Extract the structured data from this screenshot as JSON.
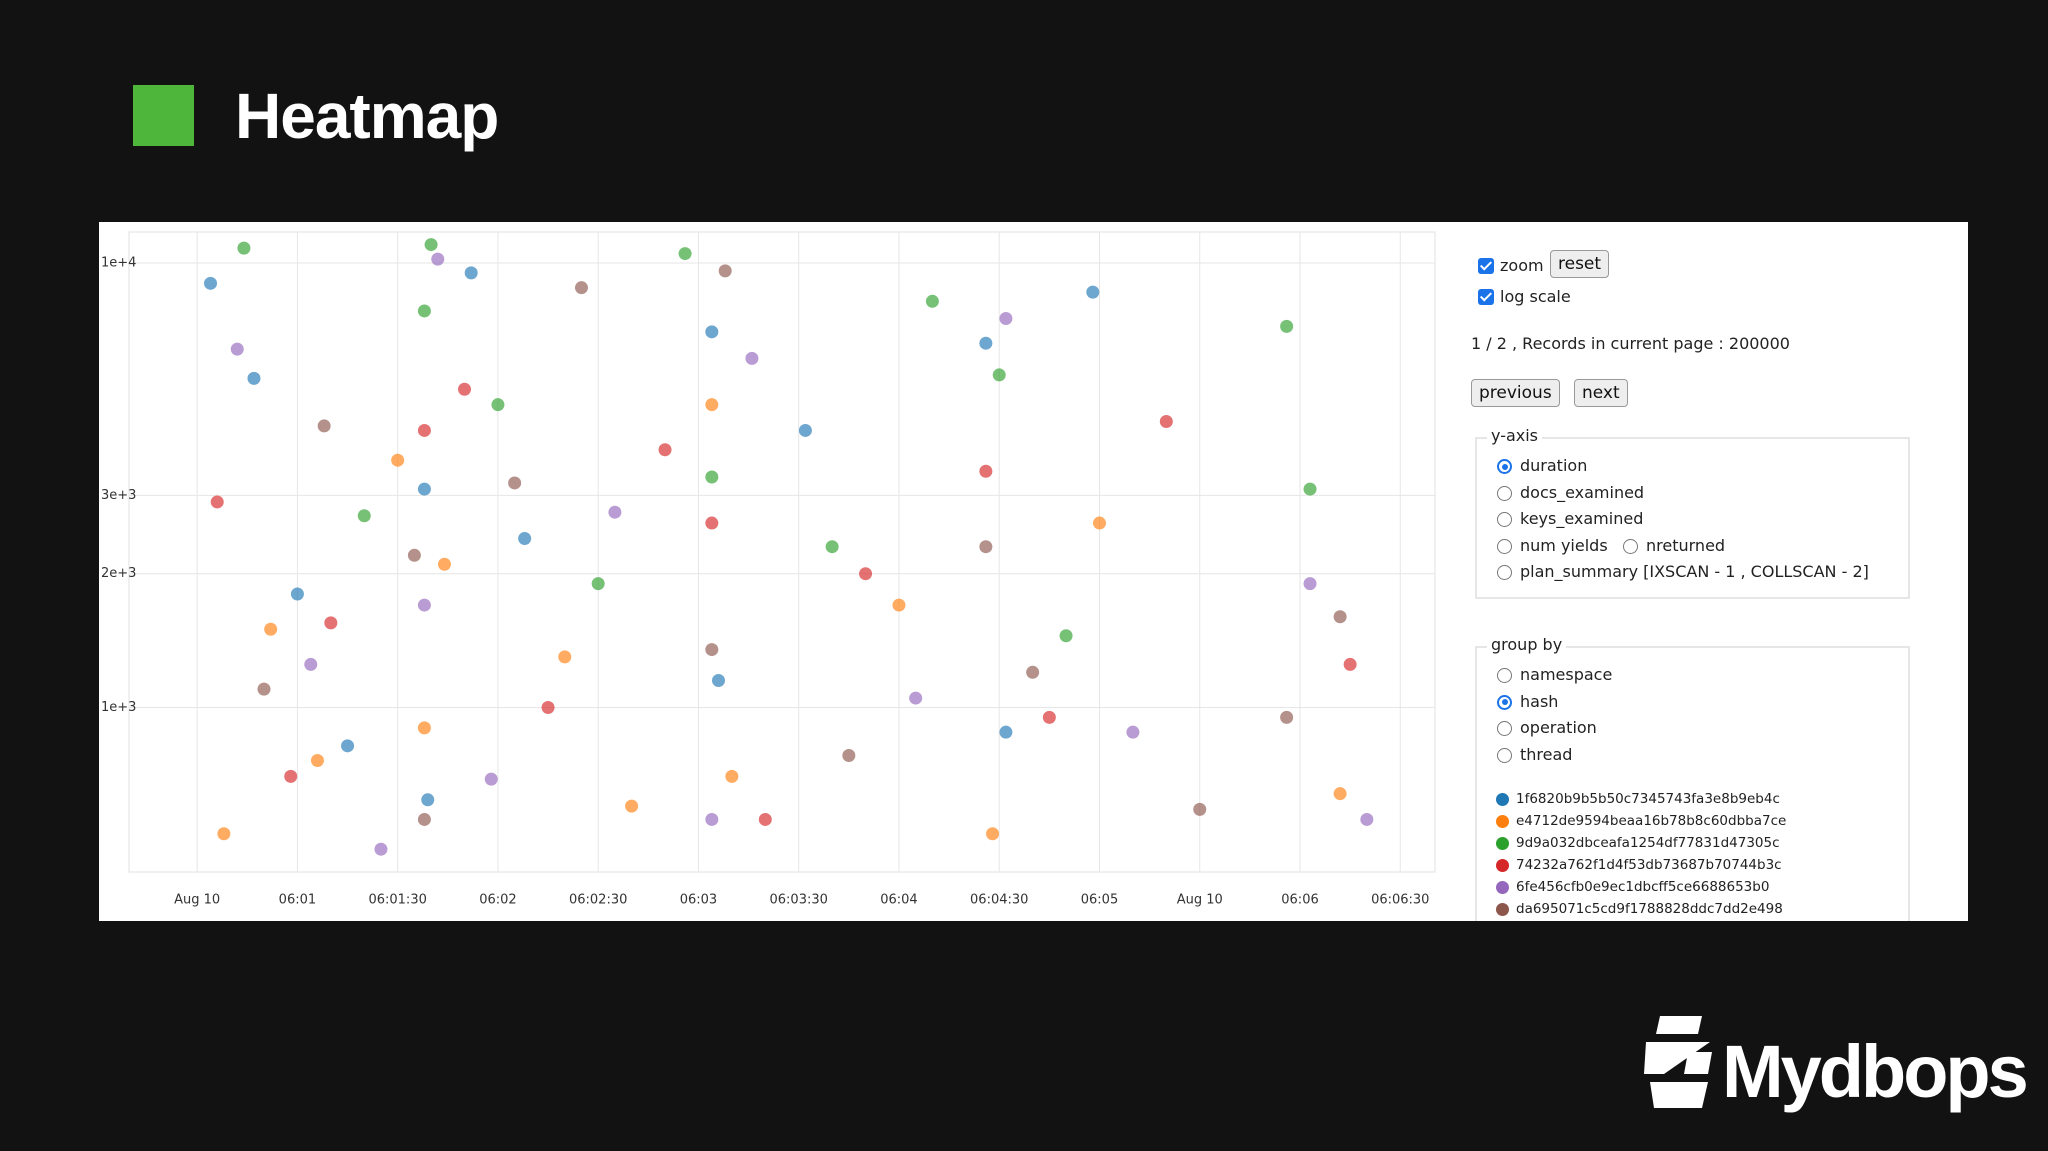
{
  "slide": {
    "title": "Heatmap",
    "brand": "Mydbops"
  },
  "chart_data": {
    "type": "scatter",
    "log_scale": true,
    "grid": true,
    "xlim": [
      12,
      398
    ],
    "ylim": [
      440,
      11500
    ],
    "xticks": [
      {
        "value": 30,
        "label": "Aug 10"
      },
      {
        "value": 60,
        "label": "06:01"
      },
      {
        "value": 90,
        "label": "06:01:30"
      },
      {
        "value": 120,
        "label": "06:02"
      },
      {
        "value": 150,
        "label": "06:02:30"
      },
      {
        "value": 180,
        "label": "06:03"
      },
      {
        "value": 210,
        "label": "06:03:30"
      },
      {
        "value": 240,
        "label": "06:04"
      },
      {
        "value": 270,
        "label": "06:04:30"
      },
      {
        "value": 300,
        "label": "06:05"
      },
      {
        "value": 330,
        "label": "Aug 10"
      },
      {
        "value": 360,
        "label": "06:06"
      },
      {
        "value": 390,
        "label": "06:06:30"
      }
    ],
    "yticks": [
      {
        "value": 10000,
        "label": "1e+4"
      },
      {
        "value": 3000,
        "label": "3e+3"
      },
      {
        "value": 2000,
        "label": "2e+3"
      },
      {
        "value": 1000,
        "label": "1e+3"
      }
    ],
    "series": [
      {
        "name": "1f6820b9b5b50c7345743fa3e8b9eb4c",
        "color": "#1f77b4",
        "x": [
          34,
          47,
          60,
          75,
          98,
          99,
          112,
          128,
          184,
          186,
          212,
          266,
          272,
          298
        ],
        "values": [
          9000,
          5500,
          1800,
          820,
          3100,
          620,
          9500,
          2400,
          7000,
          1150,
          4200,
          6600,
          880,
          8600
        ]
      },
      {
        "name": "e4712de9594beaa16b78b8c60dbba7ce",
        "color": "#ff7f0e",
        "x": [
          38,
          52,
          66,
          90,
          98,
          104,
          140,
          160,
          184,
          190,
          240,
          268,
          300,
          372
        ],
        "values": [
          520,
          1500,
          760,
          3600,
          900,
          2100,
          1300,
          600,
          4800,
          700,
          1700,
          520,
          2600,
          640
        ]
      },
      {
        "name": "9d9a032dbceafa1254df77831d47305c",
        "color": "#2ca02c",
        "x": [
          44,
          80,
          98,
          100,
          120,
          150,
          176,
          184,
          220,
          250,
          270,
          290,
          356,
          363
        ],
        "values": [
          10800,
          2700,
          7800,
          11000,
          4800,
          1900,
          10500,
          3300,
          2300,
          8200,
          5600,
          1450,
          7200,
          3100
        ]
      },
      {
        "name": "74232a762f1d4f53db73687b70744b3c",
        "color": "#d62728",
        "x": [
          36,
          58,
          70,
          98,
          110,
          135,
          170,
          184,
          200,
          230,
          266,
          285,
          320,
          375
        ],
        "values": [
          2900,
          700,
          1550,
          4200,
          5200,
          1000,
          3800,
          2600,
          560,
          2000,
          3400,
          950,
          4400,
          1250
        ]
      },
      {
        "name": "6fe456cfb0e9ec1dbcff5ce6688653b0",
        "color": "#9467bd",
        "x": [
          42,
          64,
          85,
          98,
          102,
          118,
          155,
          184,
          196,
          245,
          272,
          310,
          363,
          380
        ],
        "values": [
          6400,
          1250,
          480,
          1700,
          10200,
          690,
          2750,
          560,
          6100,
          1050,
          7500,
          880,
          1900,
          560
        ]
      },
      {
        "name": "da695071c5cd9f1788828ddc7dd2e498",
        "color": "#8c564b",
        "x": [
          50,
          68,
          95,
          98,
          125,
          145,
          184,
          188,
          225,
          266,
          280,
          330,
          356,
          372
        ],
        "values": [
          1100,
          4300,
          2200,
          560,
          3200,
          8800,
          1350,
          9600,
          780,
          2300,
          1200,
          590,
          950,
          1600
        ]
      }
    ]
  },
  "controls": {
    "zoom": {
      "label": "zoom",
      "checked": true
    },
    "reset": "reset",
    "log_scale_label": "log scale",
    "pagination": "1 / 2 , Records in current page : 200000",
    "previous": "previous",
    "next": "next",
    "y_axis": {
      "title": "y-axis",
      "options": [
        "duration",
        "docs_examined",
        "keys_examined",
        "num yields",
        "nreturned",
        "plan_summary [IXSCAN - 1 , COLLSCAN - 2]"
      ],
      "selected": 0
    },
    "group_by": {
      "title": "group by",
      "options": [
        "namespace",
        "hash",
        "operation",
        "thread"
      ],
      "selected": 1
    }
  }
}
